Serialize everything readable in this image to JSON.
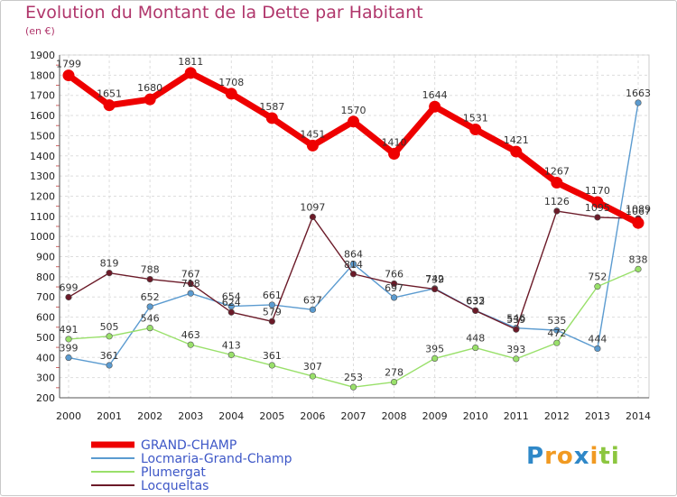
{
  "chart_data": {
    "type": "line",
    "title": "Evolution du Montant de la Dette par Habitant",
    "subtitle": "(en €)",
    "x": [
      "2000",
      "2001",
      "2002",
      "2003",
      "2004",
      "2005",
      "2006",
      "2007",
      "2008",
      "2009",
      "2010",
      "2011",
      "2012",
      "2013",
      "2014"
    ],
    "ylim": [
      200,
      1900
    ],
    "yticks": [
      200,
      300,
      400,
      500,
      600,
      700,
      800,
      900,
      1000,
      1100,
      1200,
      1300,
      1400,
      1500,
      1600,
      1700,
      1800,
      1900
    ],
    "grid": true,
    "legend_position": "bottom-left",
    "series": [
      {
        "name": "GRAND-CHAMP",
        "color": "#ee0000",
        "values": [
          1799,
          1651,
          1680,
          1811,
          1708,
          1587,
          1451,
          1570,
          1410,
          1644,
          1531,
          1421,
          1267,
          1170,
          1067
        ]
      },
      {
        "name": "Locmaria-Grand-Champ",
        "color": "#5b9bd0",
        "values": [
          399,
          361,
          652,
          718,
          654,
          661,
          637,
          864,
          697,
          742,
          633,
          546,
          535,
          444,
          1663
        ]
      },
      {
        "name": "Plumergat",
        "color": "#99e06a",
        "values": [
          491,
          505,
          546,
          463,
          413,
          361,
          307,
          253,
          278,
          395,
          448,
          393,
          472,
          752,
          838
        ]
      },
      {
        "name": "Locqueltas",
        "color": "#6b1a28",
        "values": [
          699,
          819,
          788,
          767,
          624,
          579,
          1097,
          814,
          766,
          739,
          632,
          539,
          1126,
          1095,
          1089
        ]
      }
    ]
  },
  "brand": {
    "letters": [
      {
        "char": "P",
        "color": "#2f88c8"
      },
      {
        "char": "r",
        "color": "#f19a22"
      },
      {
        "char": "o",
        "color": "#f19a22"
      },
      {
        "char": "x",
        "color": "#2f88c8"
      },
      {
        "char": "i",
        "color": "#f19a22"
      },
      {
        "char": "t",
        "color": "#8cc63f"
      },
      {
        "char": "i",
        "color": "#8cc63f"
      }
    ]
  }
}
